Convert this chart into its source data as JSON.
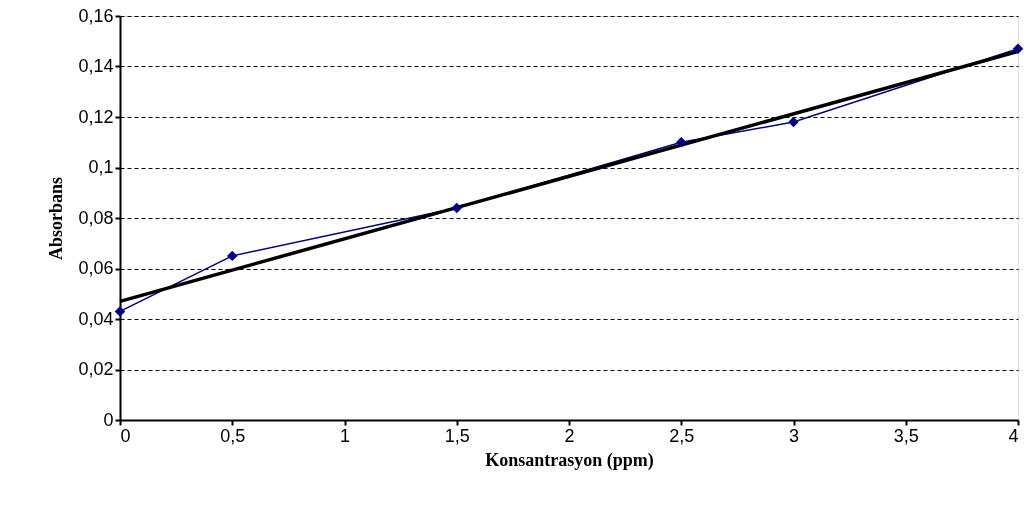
{
  "chart_data": {
    "type": "line",
    "xlabel": "Konsantrasyon (ppm)",
    "ylabel": "Absorbans",
    "x": [
      0,
      0.5,
      1.5,
      2.5,
      3,
      4
    ],
    "series": [
      {
        "color": "#000080",
        "marker": "diamond",
        "values": [
          0.043,
          0.065,
          0.084,
          0.11,
          0.118,
          0.147
        ]
      },
      {
        "type": "line",
        "color": "#000000",
        "marker": "none",
        "x": [
          0,
          4
        ],
        "values": [
          0.047,
          0.146
        ]
      }
    ],
    "xlim": [
      0,
      4
    ],
    "ylim": [
      0,
      0.16
    ],
    "xticks": [
      0,
      {
        "value": 0.5,
        "label": "0,5"
      },
      1,
      {
        "value": 1.5,
        "label": "1,5"
      },
      2,
      {
        "value": 2.5,
        "label": "2,5"
      },
      3,
      {
        "value": 3.5,
        "label": "3,5"
      },
      4
    ],
    "yticks": [
      0,
      {
        "value": 0.02,
        "label": "0,02"
      },
      {
        "value": 0.04,
        "label": "0,04"
      },
      {
        "value": 0.06,
        "label": "0,06"
      },
      {
        "value": 0.08,
        "label": "0,08"
      },
      {
        "value": 0.1,
        "label": "0,1"
      },
      {
        "value": 0.12,
        "label": "0,12"
      },
      {
        "value": 0.14,
        "label": "0,14"
      },
      {
        "value": 0.16,
        "label": "0,16"
      }
    ],
    "grid": "y"
  }
}
